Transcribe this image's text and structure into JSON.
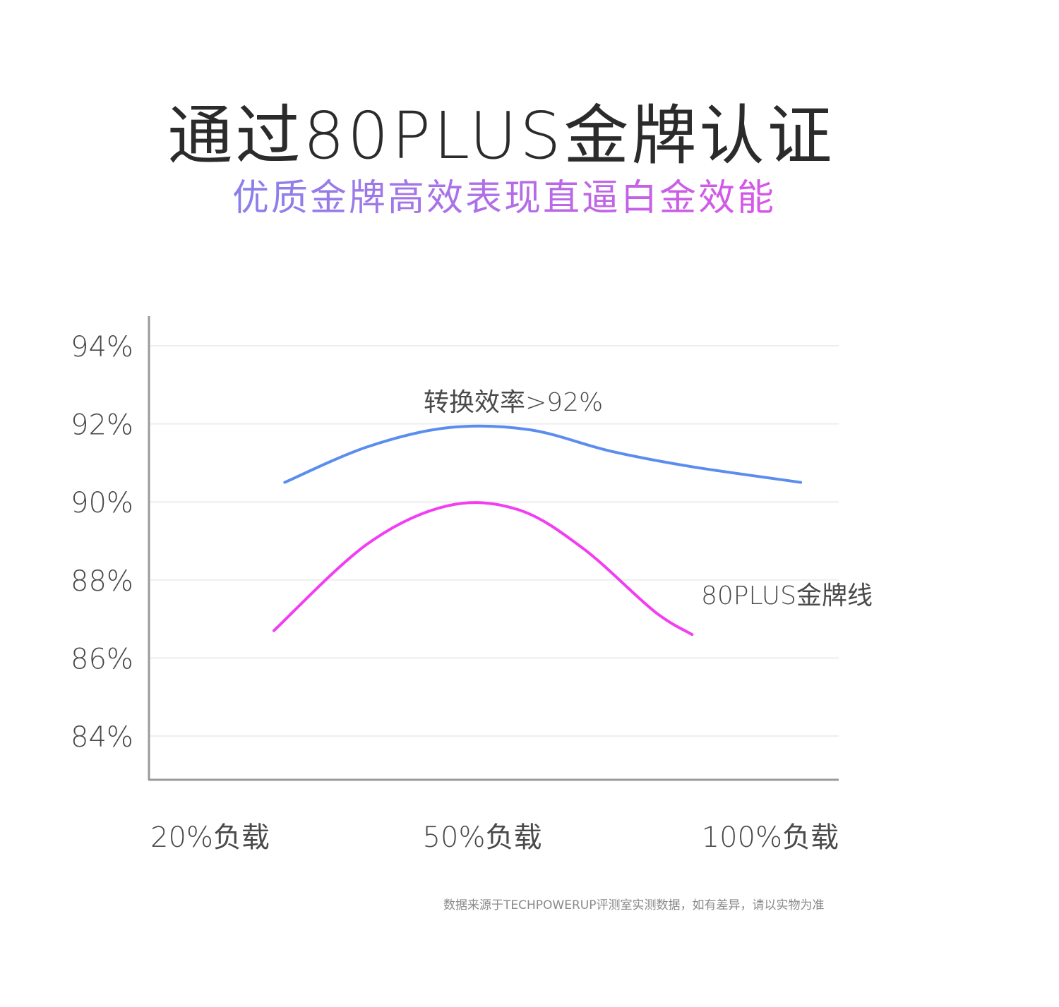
{
  "header": {
    "title": "通过80PLUS金牌认证",
    "subtitle": "优质金牌高效表现直逼白金效能"
  },
  "colors": {
    "blue_series": "#5b8def",
    "magenta_series": "#f23df2",
    "axis": "#9a9a9a",
    "grid": "#eeeeee",
    "text": "#4a4a4a"
  },
  "chart_data": {
    "type": "line",
    "grid": true,
    "ylim": [
      83.2,
      94.8
    ],
    "yticks": [
      94,
      92,
      90,
      88,
      86,
      84
    ],
    "ytick_labels": [
      "94%",
      "92%",
      "90%",
      "88%",
      "86%",
      "84%"
    ],
    "x_categories": [
      "20%负载",
      "50%负载",
      "100%负载"
    ],
    "series": [
      {
        "name": "",
        "color": "#5b8def",
        "annotation": "转换效率>92%",
        "points": [
          [
            25,
            90.5
          ],
          [
            40,
            91.4
          ],
          [
            55,
            91.9
          ],
          [
            70,
            91.85
          ],
          [
            85,
            91.3
          ],
          [
            100,
            90.9
          ],
          [
            120,
            90.5
          ]
        ]
      },
      {
        "name": "",
        "color": "#f23df2",
        "annotation": "80PLUS金牌线",
        "points": [
          [
            23,
            86.7
          ],
          [
            40,
            88.9
          ],
          [
            55,
            89.9
          ],
          [
            68,
            89.8
          ],
          [
            80,
            88.8
          ],
          [
            93,
            87.2
          ],
          [
            100,
            86.6
          ]
        ]
      }
    ]
  },
  "footnote": "数据来源于TECHPOWERUP评测室实测数据，如有差异，请以实物为准"
}
